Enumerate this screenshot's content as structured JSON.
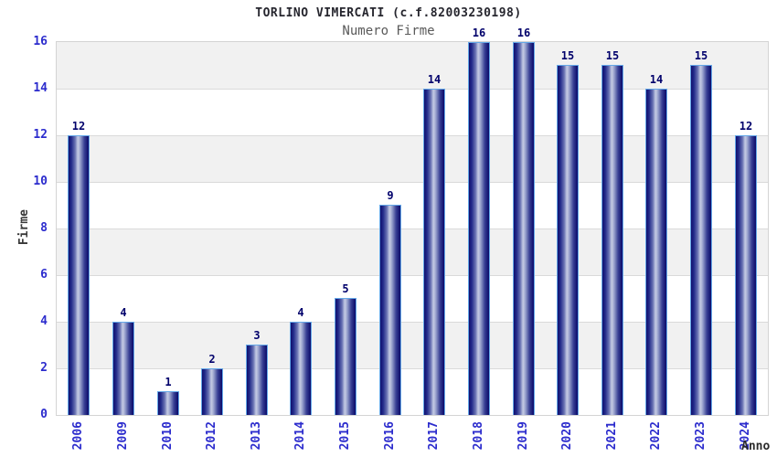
{
  "chart_data": {
    "type": "bar",
    "title": "TORLINO VIMERCATI (c.f.82003230198)",
    "subtitle": "Numero Firme",
    "xlabel": "Anno",
    "ylabel": "Firme",
    "categories": [
      "2006",
      "2009",
      "2010",
      "2012",
      "2013",
      "2014",
      "2015",
      "2016",
      "2017",
      "2018",
      "2019",
      "2020",
      "2021",
      "2022",
      "2023",
      "2024"
    ],
    "values": [
      12,
      4,
      1,
      2,
      3,
      4,
      5,
      9,
      14,
      16,
      16,
      15,
      15,
      14,
      15,
      12
    ],
    "yticks": [
      0,
      2,
      4,
      6,
      8,
      10,
      12,
      14,
      16
    ],
    "ylim": [
      0,
      16
    ],
    "grid": true,
    "legend": "none",
    "band_pattern": "alternating horizontal bands every 2 units, white from 0",
    "colors": {
      "bar_dark": "#10106e",
      "bar_light": "#c3c9e2",
      "bar_border": "#64a8e8",
      "tick_label": "#2c2ccd",
      "value_label": "#00006b",
      "band_gray": "#f1f1f1",
      "band_white": "#ffffff",
      "grid_line": "#dadada",
      "plot_border": "#d4d4d4",
      "title_color": "#26262e",
      "subtitle_color": "#5a5a5a",
      "axis_label_color": "#383838"
    }
  }
}
